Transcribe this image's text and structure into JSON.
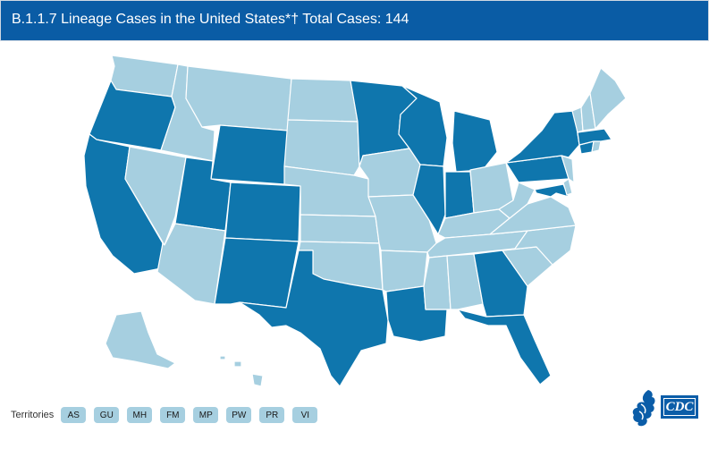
{
  "header": {
    "title": "B.1.1.7 Lineage Cases in the United States*† Total Cases: 144"
  },
  "map": {
    "colors": {
      "with_cases": "#0f76ad",
      "no_cases": "#a6cfe0",
      "border": "#ffffff"
    },
    "states_with_cases": [
      "OR",
      "CA",
      "UT",
      "WY",
      "CO",
      "NM",
      "TX",
      "MN",
      "WI",
      "IL",
      "IN",
      "MI",
      "LA",
      "GA",
      "FL",
      "PA",
      "NY",
      "CT",
      "MA",
      "MD"
    ]
  },
  "territories": {
    "label": "Territories",
    "items": [
      "AS",
      "GU",
      "MH",
      "FM",
      "MP",
      "PW",
      "PR",
      "VI"
    ]
  },
  "logo": {
    "text": "CDC"
  }
}
